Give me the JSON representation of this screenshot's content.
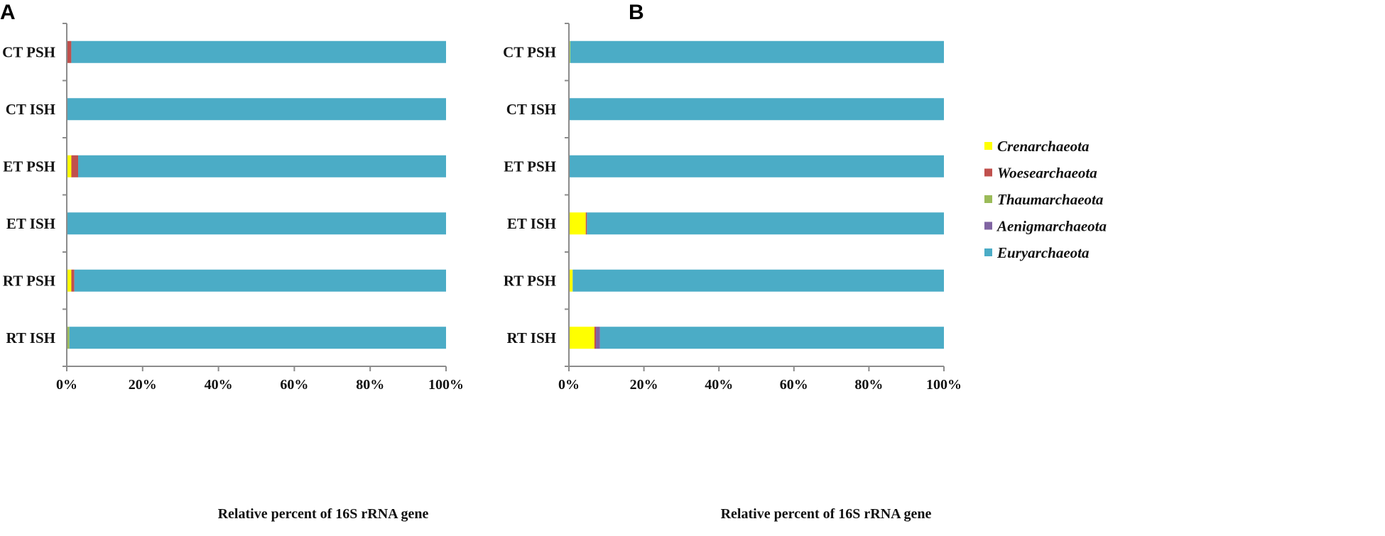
{
  "chart_data": [
    {
      "type": "bar",
      "orientation": "horizontal",
      "stacked": true,
      "panel_label": "A",
      "categories": [
        "CT PSH",
        "CT ISH",
        "ET PSH",
        "ET ISH",
        "RT PSH",
        "RT ISH"
      ],
      "series": [
        {
          "name": "Crenarchaeota",
          "values": [
            0.0,
            0.0,
            1.2,
            0.0,
            1.2,
            0.0
          ]
        },
        {
          "name": "Woesearchaeota",
          "values": [
            1.2,
            0.0,
            1.8,
            0.0,
            0.8,
            0.0
          ]
        },
        {
          "name": "Thaumarchaeota",
          "values": [
            0.0,
            0.0,
            0.0,
            0.0,
            0.0,
            0.7
          ]
        },
        {
          "name": "Aenigmarchaeota",
          "values": [
            0.0,
            0.0,
            0.0,
            0.0,
            0.0,
            0.0
          ]
        },
        {
          "name": "Euryarchaeota",
          "values": [
            98.8,
            100.0,
            97.0,
            100.0,
            98.0,
            99.3
          ]
        }
      ],
      "xlim": [
        0,
        100
      ],
      "xticks": [
        "0%",
        "20%",
        "40%",
        "60%",
        "80%",
        "100%"
      ],
      "xlabel": "Relative percent of 16S rRNA gene",
      "ylabel": ""
    },
    {
      "type": "bar",
      "orientation": "horizontal",
      "stacked": true,
      "panel_label": "B",
      "categories": [
        "CT PSH",
        "CT ISH",
        "ET PSH",
        "ET ISH",
        "RT PSH",
        "RT ISH"
      ],
      "series": [
        {
          "name": "Crenarchaeota",
          "values": [
            0.3,
            0.0,
            0.0,
            4.5,
            1.0,
            6.8
          ]
        },
        {
          "name": "Woesearchaeota",
          "values": [
            0.0,
            0.0,
            0.0,
            0.3,
            0.0,
            0.4
          ]
        },
        {
          "name": "Thaumarchaeota",
          "values": [
            0.0,
            0.0,
            0.0,
            0.0,
            0.0,
            0.0
          ]
        },
        {
          "name": "Aenigmarchaeota",
          "values": [
            0.0,
            0.0,
            0.0,
            0.0,
            0.0,
            1.1
          ]
        },
        {
          "name": "Euryarchaeota",
          "values": [
            99.7,
            100.0,
            100.0,
            95.2,
            99.0,
            91.7
          ]
        }
      ],
      "xlim": [
        0,
        100
      ],
      "xticks": [
        "0%",
        "20%",
        "40%",
        "60%",
        "80%",
        "100%"
      ],
      "xlabel": "Relative percent of 16S rRNA gene",
      "ylabel": ""
    }
  ],
  "legend": {
    "entries": [
      "Crenarchaeota",
      "Woesearchaeota",
      "Thaumarchaeota",
      "Aenigmarchaeota",
      "Euryarchaeota"
    ],
    "position": "right"
  },
  "colors": {
    "Crenarchaeota": "#ffff00",
    "Woesearchaeota": "#c0504d",
    "Thaumarchaeota": "#9bbb59",
    "Aenigmarchaeota": "#8064a2",
    "Euryarchaeota": "#4bacc6"
  }
}
